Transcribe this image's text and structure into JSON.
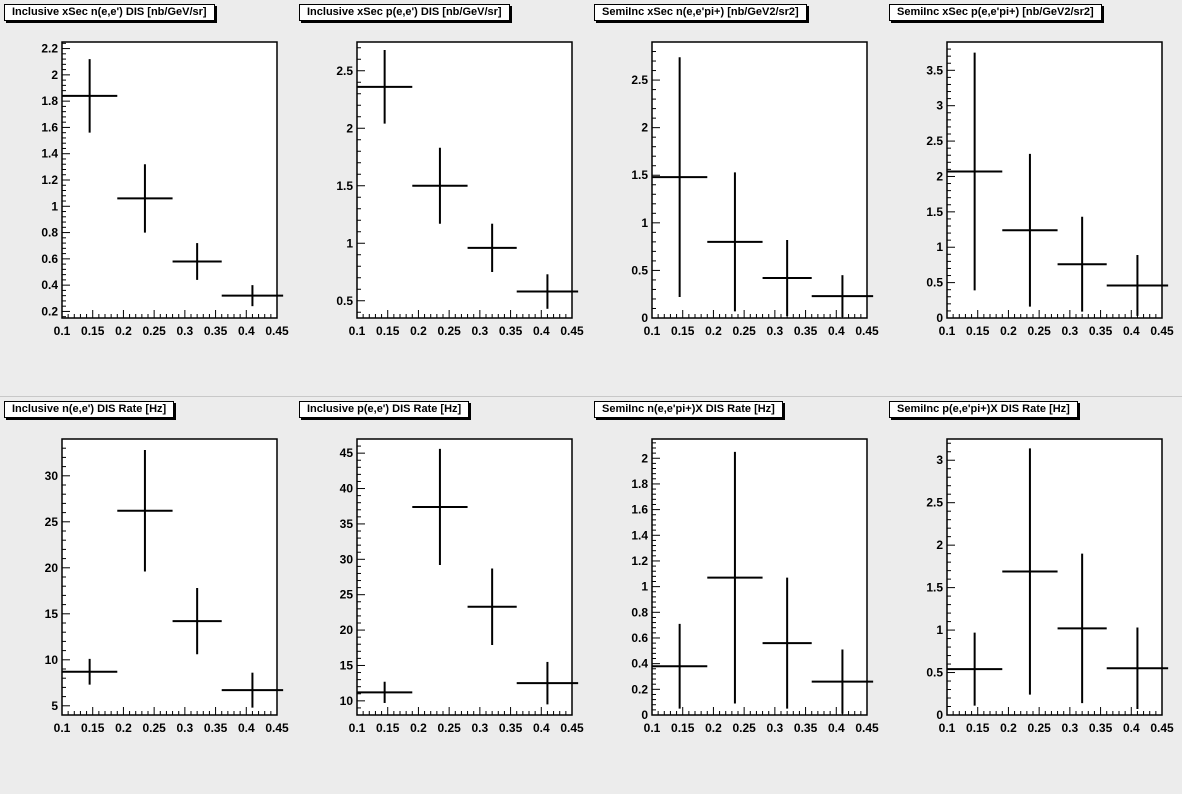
{
  "chart_data": [
    {
      "type": "scatter",
      "title": "Inclusive xSec n(e,e') DIS [nb/GeV/sr]",
      "xlim": [
        0.1,
        0.45
      ],
      "ylim": [
        0.15,
        2.25
      ],
      "xticks": [
        "0.1",
        "0.15",
        "0.2",
        "0.25",
        "0.3",
        "0.35",
        "0.4",
        "0.45"
      ],
      "yticks": [
        "0.2",
        "0.4",
        "0.6",
        "0.8",
        "1",
        "1.2",
        "1.4",
        "1.6",
        "1.8",
        "2",
        "2.2"
      ],
      "points": [
        {
          "x": 0.145,
          "xerr": 0.045,
          "y": 1.84,
          "yerr": 0.28
        },
        {
          "x": 0.235,
          "xerr": 0.045,
          "y": 1.06,
          "yerr": 0.26
        },
        {
          "x": 0.32,
          "xerr": 0.04,
          "y": 0.58,
          "yerr": 0.14
        },
        {
          "x": 0.41,
          "xerr": 0.05,
          "y": 0.32,
          "yerr": 0.08
        }
      ]
    },
    {
      "type": "scatter",
      "title": "Inclusive xSec p(e,e') DIS [nb/GeV/sr]",
      "xlim": [
        0.1,
        0.45
      ],
      "ylim": [
        0.35,
        2.75
      ],
      "xticks": [
        "0.1",
        "0.15",
        "0.2",
        "0.25",
        "0.3",
        "0.35",
        "0.4",
        "0.45"
      ],
      "yticks": [
        "0.5",
        "1",
        "1.5",
        "2",
        "2.5"
      ],
      "points": [
        {
          "x": 0.145,
          "xerr": 0.045,
          "y": 2.36,
          "yerr": 0.32
        },
        {
          "x": 0.235,
          "xerr": 0.045,
          "y": 1.5,
          "yerr": 0.33
        },
        {
          "x": 0.32,
          "xerr": 0.04,
          "y": 0.96,
          "yerr": 0.21
        },
        {
          "x": 0.41,
          "xerr": 0.05,
          "y": 0.58,
          "yerr": 0.15
        }
      ]
    },
    {
      "type": "scatter",
      "title": "SemiInc xSec n(e,e'pi+) [nb/GeV2/sr2]",
      "xlim": [
        0.1,
        0.45
      ],
      "ylim": [
        0,
        2.9
      ],
      "xticks": [
        "0.1",
        "0.15",
        "0.2",
        "0.25",
        "0.3",
        "0.35",
        "0.4",
        "0.45"
      ],
      "yticks": [
        "0",
        "0.5",
        "1",
        "1.5",
        "2",
        "2.5"
      ],
      "points": [
        {
          "x": 0.145,
          "xerr": 0.045,
          "y": 1.48,
          "yerr": 1.26
        },
        {
          "x": 0.235,
          "xerr": 0.045,
          "y": 0.8,
          "yerr": 0.73
        },
        {
          "x": 0.32,
          "xerr": 0.04,
          "y": 0.42,
          "yerr": 0.4
        },
        {
          "x": 0.41,
          "xerr": 0.05,
          "y": 0.23,
          "yerr": 0.22
        }
      ]
    },
    {
      "type": "scatter",
      "title": "SemiInc xSec p(e,e'pi+) [nb/GeV2/sr2]",
      "xlim": [
        0.1,
        0.45
      ],
      "ylim": [
        0,
        3.9
      ],
      "xticks": [
        "0.1",
        "0.15",
        "0.2",
        "0.25",
        "0.3",
        "0.35",
        "0.4",
        "0.45"
      ],
      "yticks": [
        "0",
        "0.5",
        "1",
        "1.5",
        "2",
        "2.5",
        "3",
        "3.5"
      ],
      "points": [
        {
          "x": 0.145,
          "xerr": 0.045,
          "y": 2.07,
          "yerr": 1.68
        },
        {
          "x": 0.235,
          "xerr": 0.045,
          "y": 1.24,
          "yerr": 1.08
        },
        {
          "x": 0.32,
          "xerr": 0.04,
          "y": 0.76,
          "yerr": 0.67
        },
        {
          "x": 0.41,
          "xerr": 0.05,
          "y": 0.46,
          "yerr": 0.43
        }
      ]
    },
    {
      "type": "scatter",
      "title": "Inclusive n(e,e') DIS Rate [Hz]",
      "xlim": [
        0.1,
        0.45
      ],
      "ylim": [
        4,
        34
      ],
      "xticks": [
        "0.1",
        "0.15",
        "0.2",
        "0.25",
        "0.3",
        "0.35",
        "0.4",
        "0.45"
      ],
      "yticks": [
        "5",
        "10",
        "15",
        "20",
        "25",
        "30"
      ],
      "points": [
        {
          "x": 0.145,
          "xerr": 0.045,
          "y": 8.7,
          "yerr": 1.4
        },
        {
          "x": 0.235,
          "xerr": 0.045,
          "y": 26.2,
          "yerr": 6.6
        },
        {
          "x": 0.32,
          "xerr": 0.04,
          "y": 14.2,
          "yerr": 3.6
        },
        {
          "x": 0.41,
          "xerr": 0.05,
          "y": 6.7,
          "yerr": 1.9
        }
      ]
    },
    {
      "type": "scatter",
      "title": "Inclusive p(e,e') DIS Rate [Hz]",
      "xlim": [
        0.1,
        0.45
      ],
      "ylim": [
        8,
        47
      ],
      "xticks": [
        "0.1",
        "0.15",
        "0.2",
        "0.25",
        "0.3",
        "0.35",
        "0.4",
        "0.45"
      ],
      "yticks": [
        "10",
        "15",
        "20",
        "25",
        "30",
        "35",
        "40",
        "45"
      ],
      "points": [
        {
          "x": 0.145,
          "xerr": 0.045,
          "y": 11.2,
          "yerr": 1.5
        },
        {
          "x": 0.235,
          "xerr": 0.045,
          "y": 37.4,
          "yerr": 8.2
        },
        {
          "x": 0.32,
          "xerr": 0.04,
          "y": 23.3,
          "yerr": 5.4
        },
        {
          "x": 0.41,
          "xerr": 0.05,
          "y": 12.5,
          "yerr": 3.0
        }
      ]
    },
    {
      "type": "scatter",
      "title": "SemiInc n(e,e'pi+)X DIS Rate [Hz]",
      "xlim": [
        0.1,
        0.45
      ],
      "ylim": [
        0,
        2.15
      ],
      "xticks": [
        "0.1",
        "0.15",
        "0.2",
        "0.25",
        "0.3",
        "0.35",
        "0.4",
        "0.45"
      ],
      "yticks": [
        "0",
        "0.2",
        "0.4",
        "0.6",
        "0.8",
        "1",
        "1.2",
        "1.4",
        "1.6",
        "1.8",
        "2"
      ],
      "points": [
        {
          "x": 0.145,
          "xerr": 0.045,
          "y": 0.38,
          "yerr": 0.33
        },
        {
          "x": 0.235,
          "xerr": 0.045,
          "y": 1.07,
          "yerr": 0.98
        },
        {
          "x": 0.32,
          "xerr": 0.04,
          "y": 0.56,
          "yerr": 0.51
        },
        {
          "x": 0.41,
          "xerr": 0.05,
          "y": 0.26,
          "yerr": 0.25
        }
      ]
    },
    {
      "type": "scatter",
      "title": "SemiInc p(e,e'pi+)X DIS Rate [Hz]",
      "xlim": [
        0.1,
        0.45
      ],
      "ylim": [
        0,
        3.25
      ],
      "xticks": [
        "0.1",
        "0.15",
        "0.2",
        "0.25",
        "0.3",
        "0.35",
        "0.4",
        "0.45"
      ],
      "yticks": [
        "0",
        "0.5",
        "1",
        "1.5",
        "2",
        "2.5",
        "3"
      ],
      "points": [
        {
          "x": 0.145,
          "xerr": 0.045,
          "y": 0.54,
          "yerr": 0.43
        },
        {
          "x": 0.235,
          "xerr": 0.045,
          "y": 1.69,
          "yerr": 1.45
        },
        {
          "x": 0.32,
          "xerr": 0.04,
          "y": 1.02,
          "yerr": 0.88
        },
        {
          "x": 0.41,
          "xerr": 0.05,
          "y": 0.55,
          "yerr": 0.48
        }
      ]
    }
  ]
}
